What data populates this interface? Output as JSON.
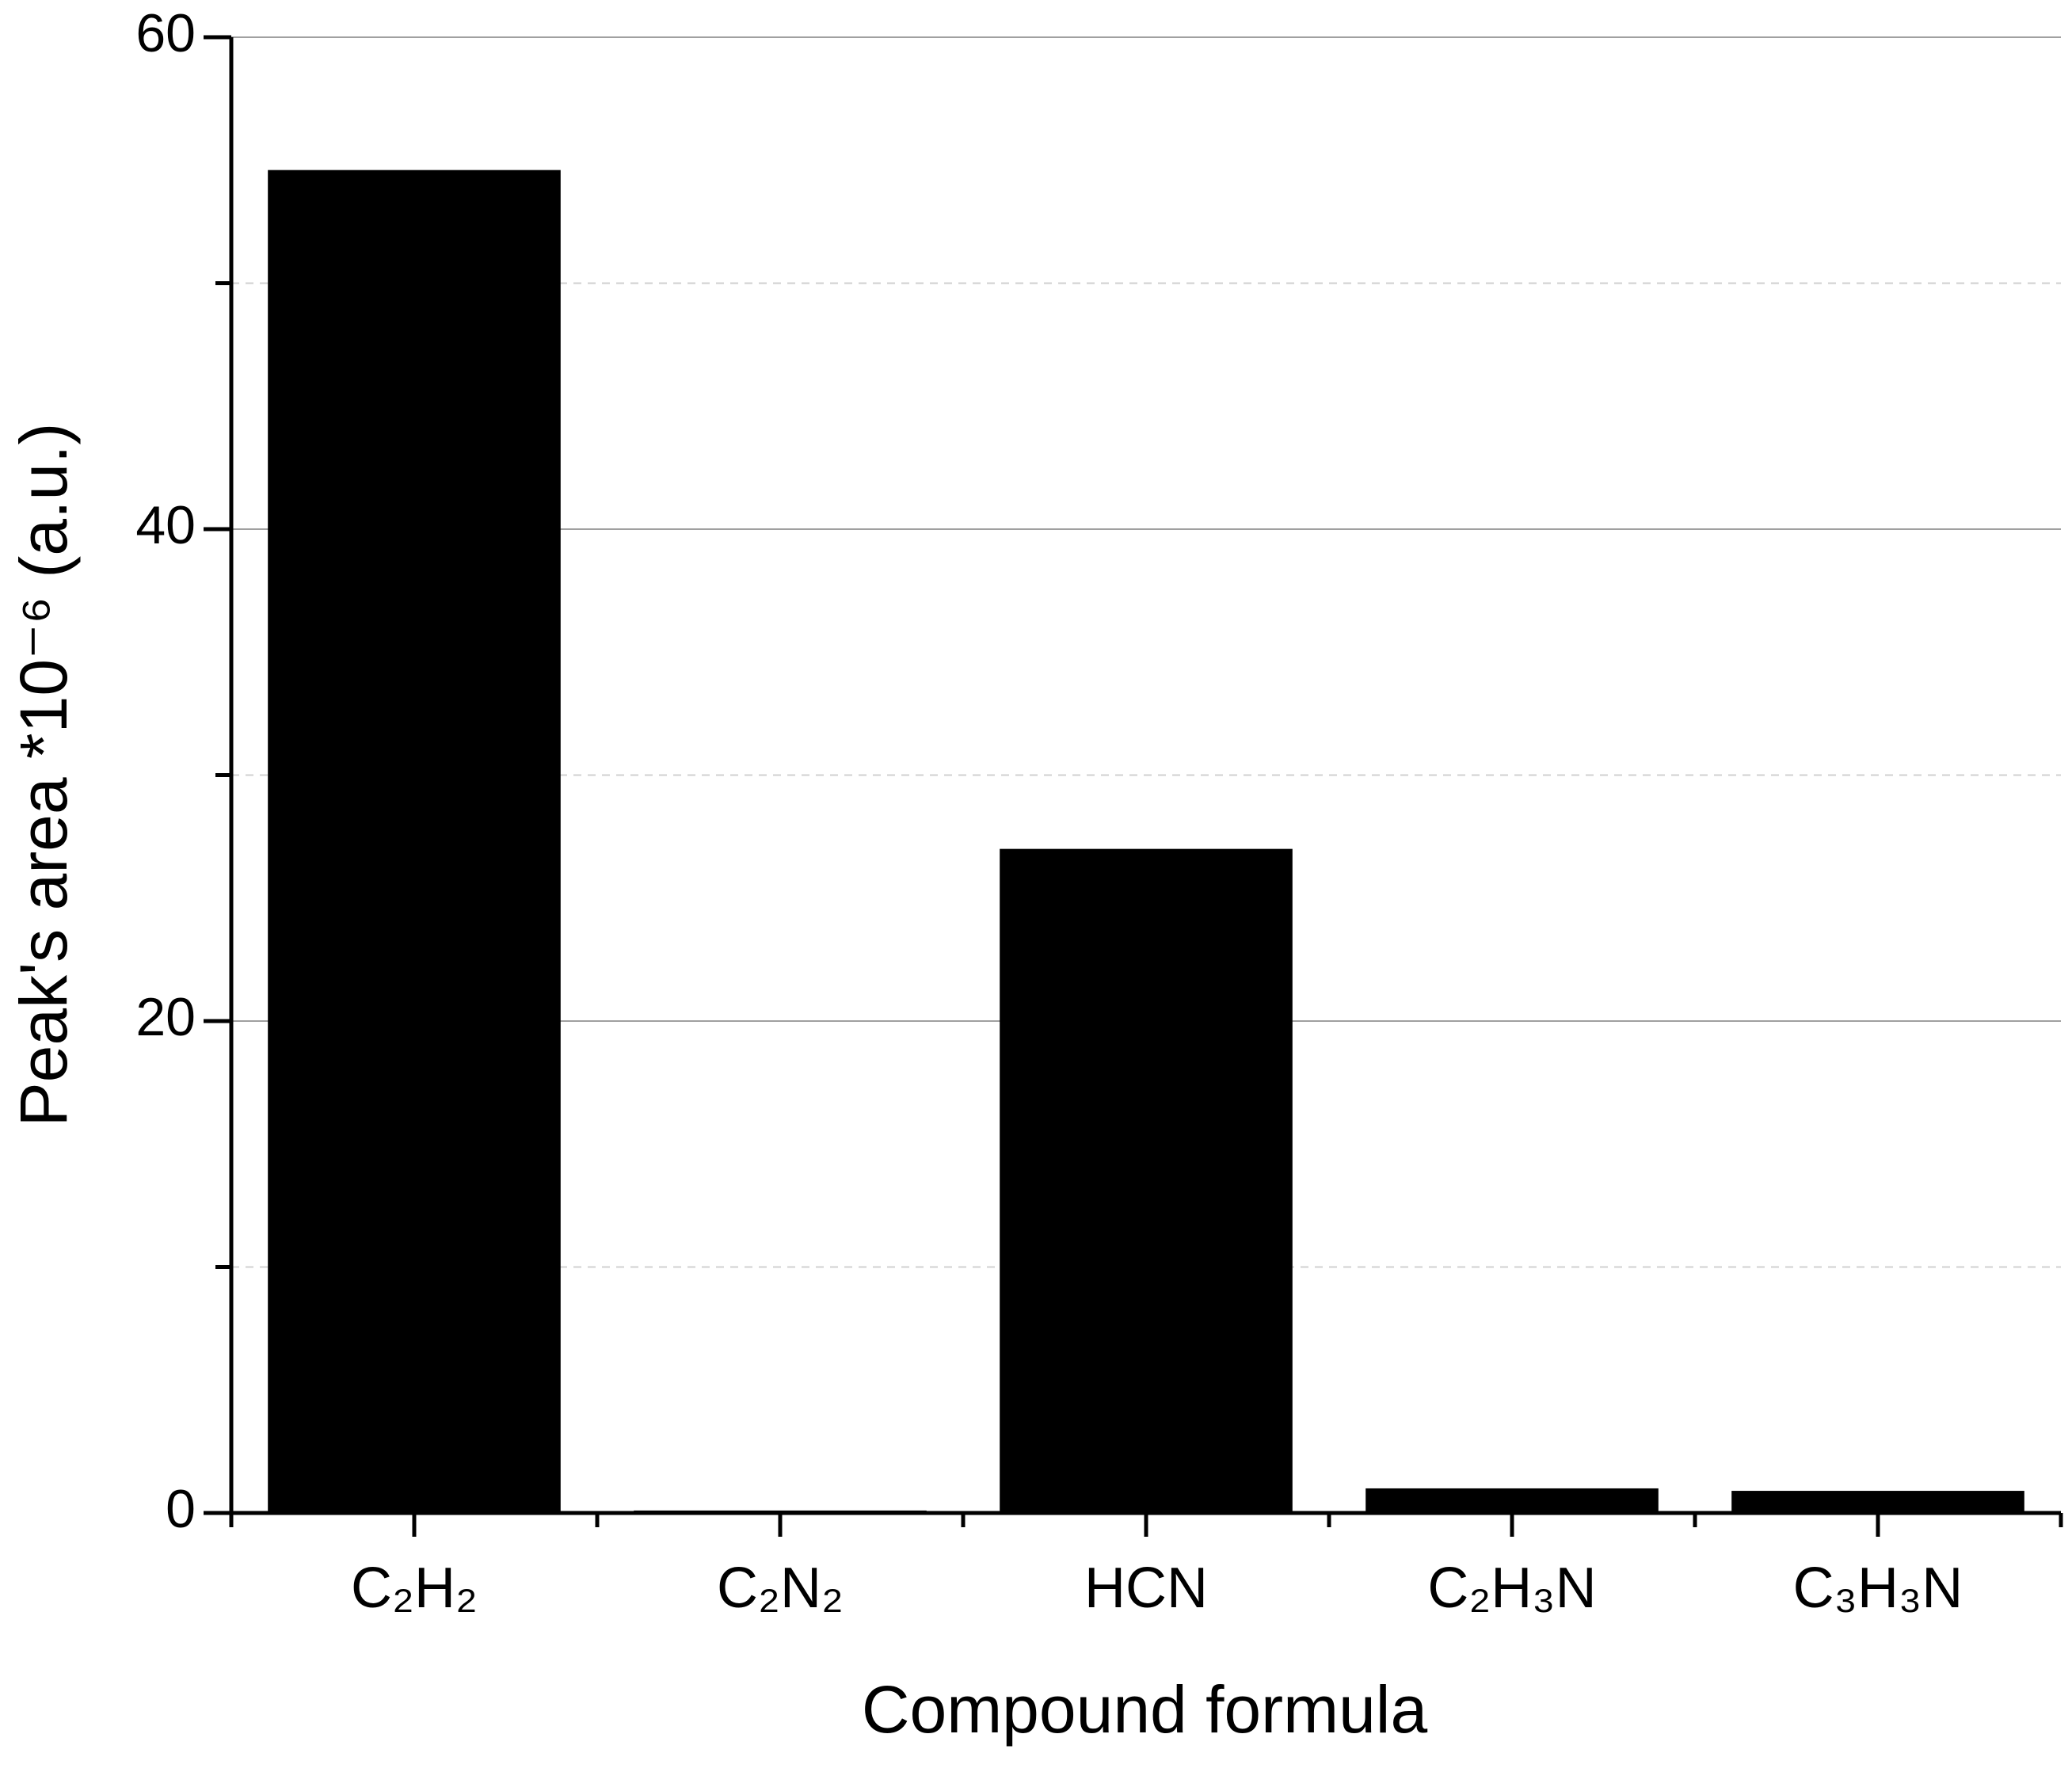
{
  "chart_data": {
    "type": "bar",
    "x_label": "Compound formula",
    "y_label": "Peak's area *10⁻⁶ (a.u.)",
    "categories": [
      "C₂H₂",
      "C₂N₂",
      "HCN",
      "C₂H₃N",
      "C₃H₃N"
    ],
    "values": [
      54.6,
      0.1,
      27.0,
      1.0,
      0.9
    ],
    "color": "#000000",
    "ylim": [
      0,
      60
    ],
    "yticks": [
      0,
      20,
      40,
      60
    ],
    "minor_yticks": [
      10,
      30,
      50
    ],
    "grid": true
  }
}
